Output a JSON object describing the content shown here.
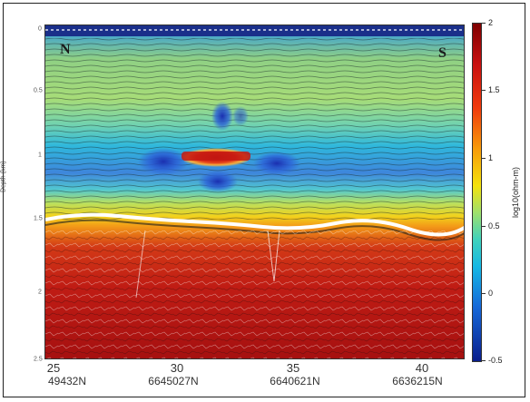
{
  "compass": {
    "north": "N",
    "south": "S"
  },
  "y_axis": {
    "label": "Depth (km)",
    "ticks": [
      "0",
      "0.5",
      "1",
      "1.5",
      "2",
      "2.5"
    ]
  },
  "x_axis": {
    "ticks": [
      "25",
      "30",
      "35",
      "40"
    ],
    "northings": [
      "49432N",
      "6645027N",
      "6640621N",
      "6636215N"
    ]
  },
  "colorbar": {
    "label": "log10(ohm-m)",
    "ticks": [
      "2",
      "1.5",
      "1",
      "0.5",
      "0",
      "-0.5"
    ],
    "range": [
      -0.5,
      2
    ],
    "colors": [
      "#0a1e8c",
      "#1668d8",
      "#16b8e4",
      "#3fd2bc",
      "#9fe06c",
      "#f4e20c",
      "#f79a0a",
      "#f03a0c",
      "#c81010",
      "#7f0000"
    ]
  }
}
